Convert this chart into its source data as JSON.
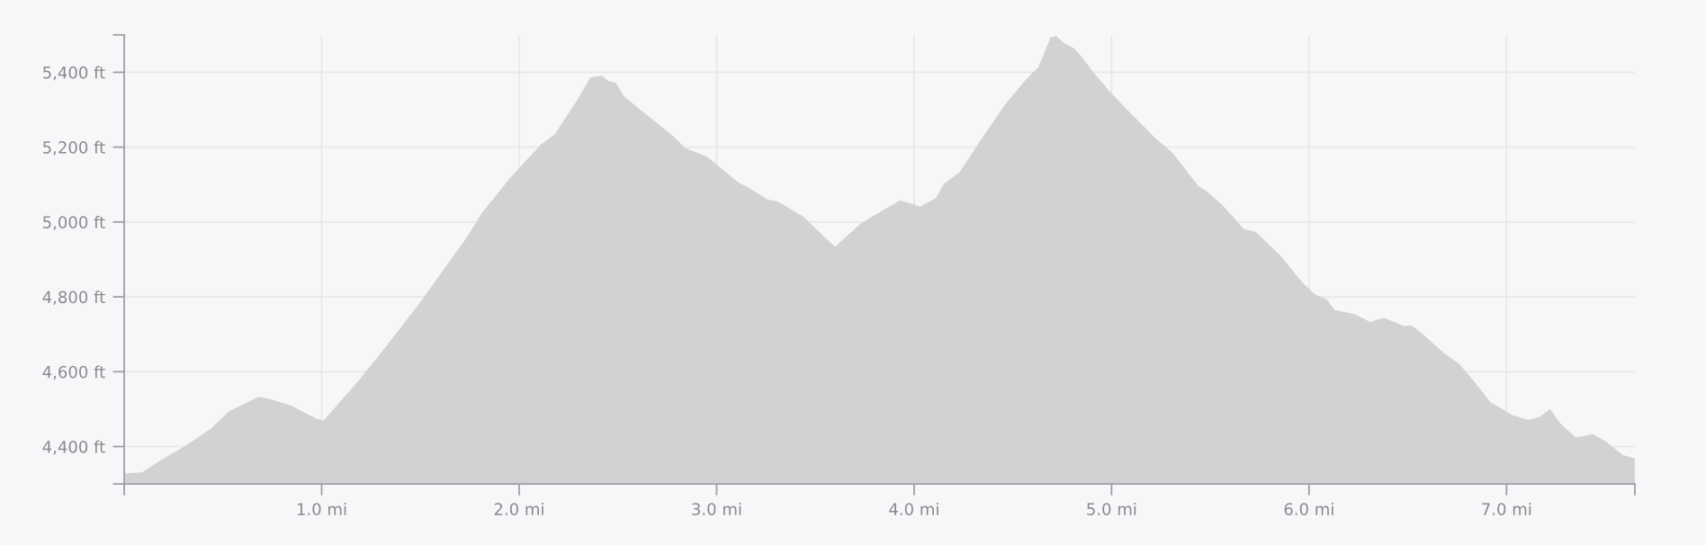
{
  "chart_data": {
    "type": "area",
    "x": [
      0,
      0.09,
      0.19,
      0.31,
      0.44,
      0.53,
      0.68,
      0.74,
      0.85,
      0.97,
      1.01,
      1.05,
      1.18,
      1.3,
      1.49,
      1.56,
      1.74,
      1.81,
      1.95,
      2.11,
      2.18,
      2.29,
      2.36,
      2.42,
      2.45,
      2.49,
      2.53,
      2.66,
      2.78,
      2.84,
      2.95,
      3.11,
      3.16,
      3.26,
      3.31,
      3.44,
      3.53,
      3.6,
      3.73,
      3.86,
      3.93,
      4.03,
      4.11,
      4.15,
      4.23,
      4.34,
      4.46,
      4.56,
      4.63,
      4.69,
      4.72,
      4.76,
      4.81,
      4.85,
      4.9,
      4.99,
      5.09,
      5.22,
      5.31,
      5.44,
      5.47,
      5.56,
      5.67,
      5.73,
      5.85,
      5.97,
      6.03,
      6.09,
      6.13,
      6.23,
      6.31,
      6.38,
      6.48,
      6.52,
      6.59,
      6.69,
      6.76,
      6.83,
      6.92,
      7.03,
      7.11,
      7.17,
      7.22,
      7.27,
      7.35,
      7.44,
      7.51,
      7.59,
      7.65
    ],
    "series": [
      {
        "color": "#d2d2d4",
        "values": [
          4328,
          4331,
          4365,
          4402,
          4448,
          4494,
          4533,
          4527,
          4508,
          4475,
          4469,
          4494,
          4572,
          4650,
          4779,
          4830,
          4963,
          5023,
          5115,
          5207,
          5234,
          5322,
          5386,
          5391,
          5377,
          5372,
          5336,
          5280,
          5230,
          5198,
          5175,
          5106,
          5092,
          5060,
          5055,
          5014,
          4968,
          4934,
          4996,
          5037,
          5058,
          5041,
          5064,
          5101,
          5133,
          5221,
          5313,
          5377,
          5414,
          5492,
          5497,
          5478,
          5464,
          5441,
          5405,
          5349,
          5294,
          5225,
          5184,
          5096,
          5087,
          5046,
          4981,
          4973,
          4913,
          4836,
          4807,
          4793,
          4765,
          4754,
          4733,
          4744,
          4722,
          4724,
          4694,
          4647,
          4621,
          4578,
          4518,
          4484,
          4471,
          4480,
          4501,
          4463,
          4424,
          4433,
          4411,
          4377,
          4368
        ]
      }
    ],
    "xlim": [
      0,
      7.65
    ],
    "xticks": [
      {
        "value": 0,
        "label": null
      },
      {
        "value": 1,
        "label": "1.0 mi"
      },
      {
        "value": 2,
        "label": "2.0 mi"
      },
      {
        "value": 3,
        "label": "3.0 mi"
      },
      {
        "value": 4,
        "label": "4.0 mi"
      },
      {
        "value": 5,
        "label": "5.0 mi"
      },
      {
        "value": 6,
        "label": "6.0 mi"
      },
      {
        "value": 7,
        "label": "7.0 mi"
      },
      {
        "value": 7.65,
        "label": null
      }
    ],
    "ylim": [
      4300,
      5500
    ],
    "yticks": [
      {
        "value": 4300,
        "label": null
      },
      {
        "value": 4400,
        "label": "4,400 ft"
      },
      {
        "value": 4600,
        "label": "4,600 ft"
      },
      {
        "value": 4800,
        "label": "4,800 ft"
      },
      {
        "value": 5000,
        "label": "5,000 ft"
      },
      {
        "value": 5200,
        "label": "5,200 ft"
      },
      {
        "value": 5400,
        "label": "5,400 ft"
      },
      {
        "value": 5500,
        "label": null
      }
    ],
    "grid": true,
    "legend": false
  }
}
